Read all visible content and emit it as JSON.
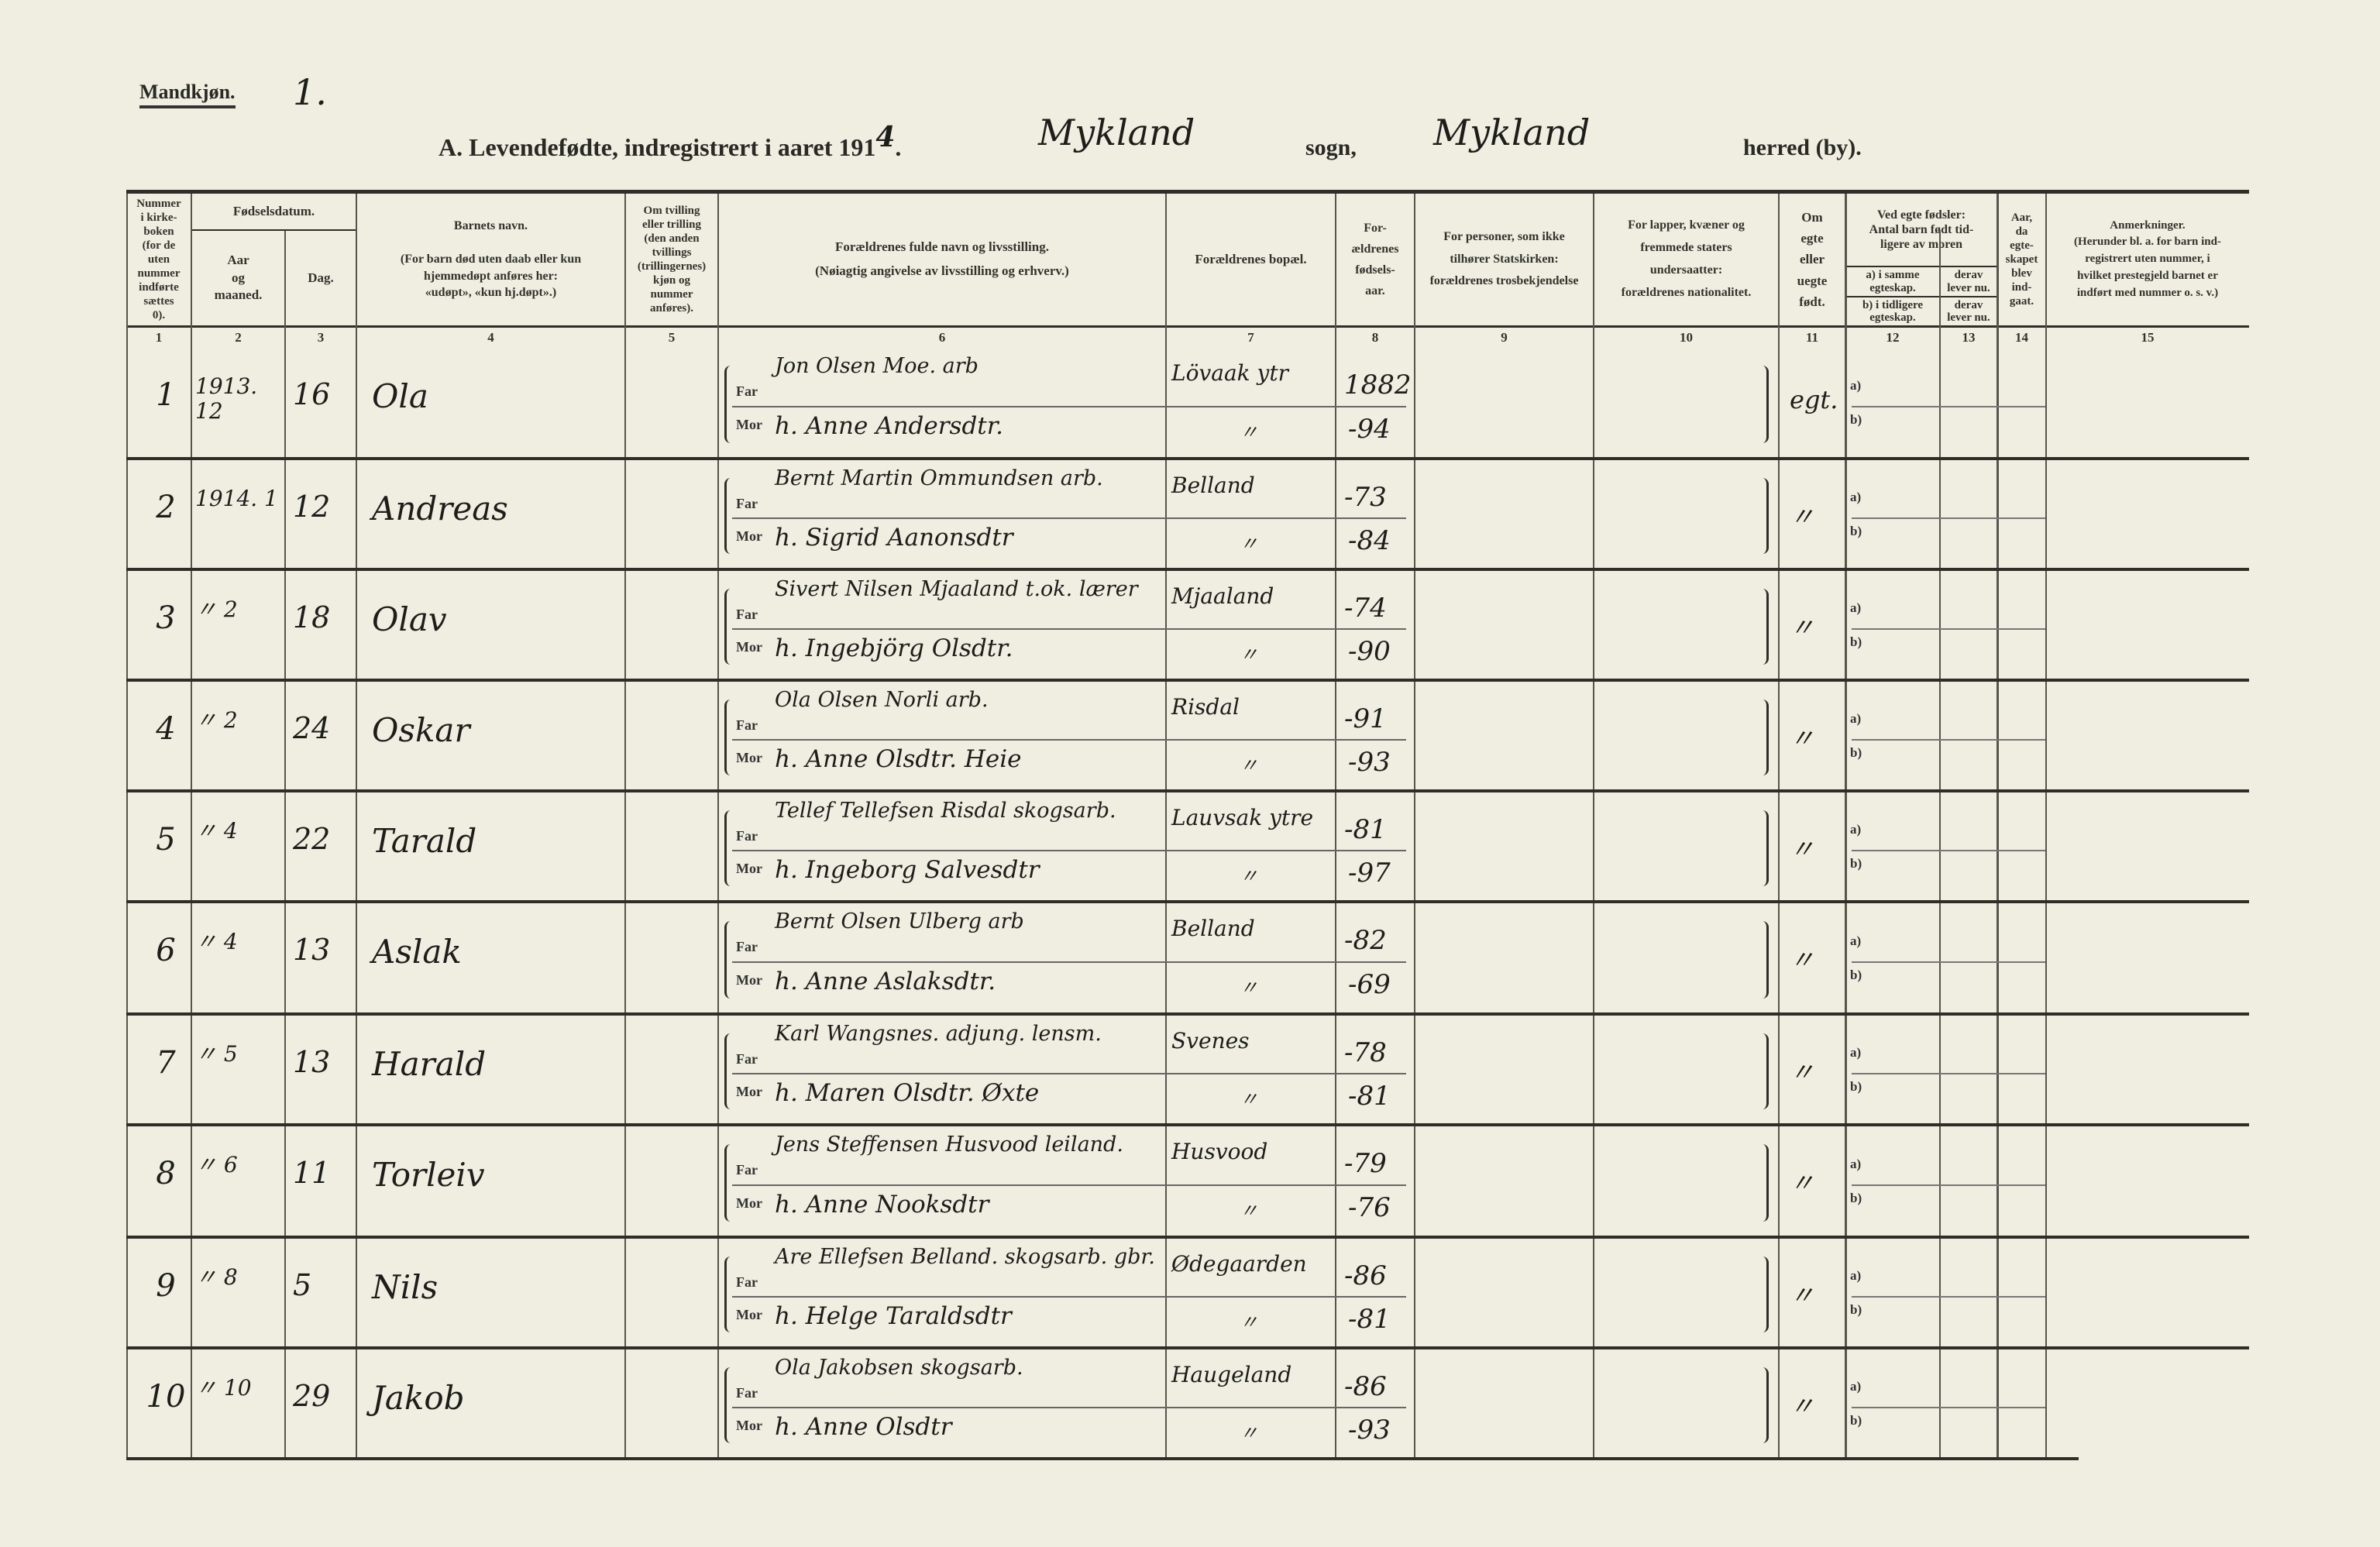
{
  "header": {
    "gender_label": "Mandkjøn.",
    "sheet_number": "1.",
    "title": "A. Levendefødte, indregistrert i aaret 191",
    "year_digit": "4",
    "title_dot": ".",
    "parish": "Mykland",
    "sogn_label": "sogn,",
    "municipality": "Mykland",
    "herred_label": "herred (by)."
  },
  "columns": {
    "c1": "Nummer\ni kirke-\nboken\n(for de\nuten\nnummer\nindførte\nsættes\n0).",
    "c2_3_group": "Fødselsdatum.",
    "c2": "Aar\nog\nmaaned.",
    "c3": "Dag.",
    "c4": "Barnets navn.\n\n(For barn død uten daab eller kun\nhjemmedøpt anføres her:\n«udøpt», «kun hj.døpt».)",
    "c5": "Om tvilling\neller trilling\n(den anden\ntvillings\n(trillingernes)\nkjøn og\nnummer\nanføres).",
    "c6": "Forældrenes fulde navn og livsstilling.\n(Nøiagtig angivelse av livsstilling og erhverv.)",
    "c7": "Forældrenes bopæl.",
    "c8": "For-\nældrenes\nfødsels-\naar.",
    "c9": "For personer, som ikke\ntilhører Statskirken:\nforældrenes trosbekjendelse",
    "c10": "For lapper, kvæner og\nfremmede staters\nundersaatter:\nforældrenes nationalitet.",
    "c11": "Om\negte\neller\nuegte\nfødt.",
    "c12_13_group": "Ved egte fødsler:\nAntal barn født tid-\nligere av moren",
    "c12a": "a) i samme\negteskap.",
    "c13a": "derav\nlever nu.",
    "c12b": "b) i tidligere\negteskap.",
    "c13b": "derav\nlever nu.",
    "c14": "Aar,\nda\negte-\nskapet\nblev\nind-\ngaat.",
    "c15": "Anmerkninger.\n(Herunder bl. a. for barn ind-\nregistrert uten nummer, i\nhvilket prestegjeld barnet er\nindført med nummer o. s. v.)",
    "numbers": [
      "1",
      "2",
      "3",
      "4",
      "5",
      "6",
      "7",
      "8",
      "9",
      "10",
      "11",
      "12",
      "13",
      "14",
      "15"
    ]
  },
  "labels": {
    "far": "Far",
    "mor": "Mor",
    "a": "a)",
    "b": "b)"
  },
  "rows": [
    {
      "nr": "1",
      "aar": "1913. 12",
      "dag": "16",
      "navn": "Ola",
      "far": "Jon Olsen Moe. arb",
      "mor": "h. Anne Andersdtr.",
      "bopel_far": "Lövaak ytr",
      "bopel_mor": "〃",
      "aar_far": "1882",
      "aar_mor": "-94",
      "egte": "egt."
    },
    {
      "nr": "2",
      "aar": "1914. 1",
      "dag": "12",
      "navn": "Andreas",
      "far": "Bernt Martin Ommundsen arb.",
      "mor": "h. Sigrid Aanonsdtr",
      "bopel_far": "Belland",
      "bopel_mor": "〃",
      "aar_far": "-73",
      "aar_mor": "-84",
      "egte": "〃"
    },
    {
      "nr": "3",
      "aar": "〃 2",
      "dag": "18",
      "navn": "Olav",
      "far": "Sivert Nilsen Mjaaland t.ok. lærer",
      "mor": "h. Ingebjörg Olsdtr.",
      "bopel_far": "Mjaaland",
      "bopel_mor": "〃",
      "aar_far": "-74",
      "aar_mor": "-90",
      "egte": "〃"
    },
    {
      "nr": "4",
      "aar": "〃 2",
      "dag": "24",
      "navn": "Oskar",
      "far": "Ola Olsen Norli arb.",
      "mor": "h. Anne Olsdtr. Heie",
      "bopel_far": "Risdal",
      "bopel_mor": "〃",
      "aar_far": "-91",
      "aar_mor": "-93",
      "egte": "〃"
    },
    {
      "nr": "5",
      "aar": "〃 4",
      "dag": "22",
      "navn": "Tarald",
      "far": "Tellef Tellefsen Risdal skogsarb.",
      "mor": "h. Ingeborg Salvesdtr",
      "bopel_far": "Lauvsak ytre",
      "bopel_mor": "〃",
      "aar_far": "-81",
      "aar_mor": "-97",
      "egte": "〃"
    },
    {
      "nr": "6",
      "aar": "〃 4",
      "dag": "13",
      "navn": "Aslak",
      "far": "Bernt Olsen Ulberg arb",
      "mor": "h. Anne Aslaksdtr.",
      "bopel_far": "Belland",
      "bopel_mor": "〃",
      "aar_far": "-82",
      "aar_mor": "-69",
      "egte": "〃"
    },
    {
      "nr": "7",
      "aar": "〃 5",
      "dag": "13",
      "navn": "Harald",
      "far": "Karl Wangsnes. adjung. lensm.",
      "mor": "h. Maren Olsdtr. Øxte",
      "bopel_far": "Svenes",
      "bopel_mor": "〃",
      "aar_far": "-78",
      "aar_mor": "-81",
      "egte": "〃"
    },
    {
      "nr": "8",
      "aar": "〃 6",
      "dag": "11",
      "navn": "Torleiv",
      "far": "Jens Steffensen Husvood leiland.",
      "mor": "h. Anne Nooksdtr",
      "bopel_far": "Husvood",
      "bopel_mor": "〃",
      "aar_far": "-79",
      "aar_mor": "-76",
      "egte": "〃"
    },
    {
      "nr": "9",
      "aar": "〃 8",
      "dag": "5",
      "navn": "Nils",
      "far": "Are Ellefsen Belland. skogsarb. gbr.",
      "mor": "h. Helge Taraldsdtr",
      "bopel_far": "Ødegaarden",
      "bopel_mor": "〃",
      "aar_far": "-86",
      "aar_mor": "-81",
      "egte": "〃"
    },
    {
      "nr": "10",
      "aar": "〃 10",
      "dag": "29",
      "navn": "Jakob",
      "far": "Ola Jakobsen skogsarb.",
      "mor": "h. Anne Olsdtr",
      "bopel_far": "Haugeland",
      "bopel_mor": "〃",
      "aar_far": "-86",
      "aar_mor": "-93",
      "egte": "〃"
    }
  ]
}
